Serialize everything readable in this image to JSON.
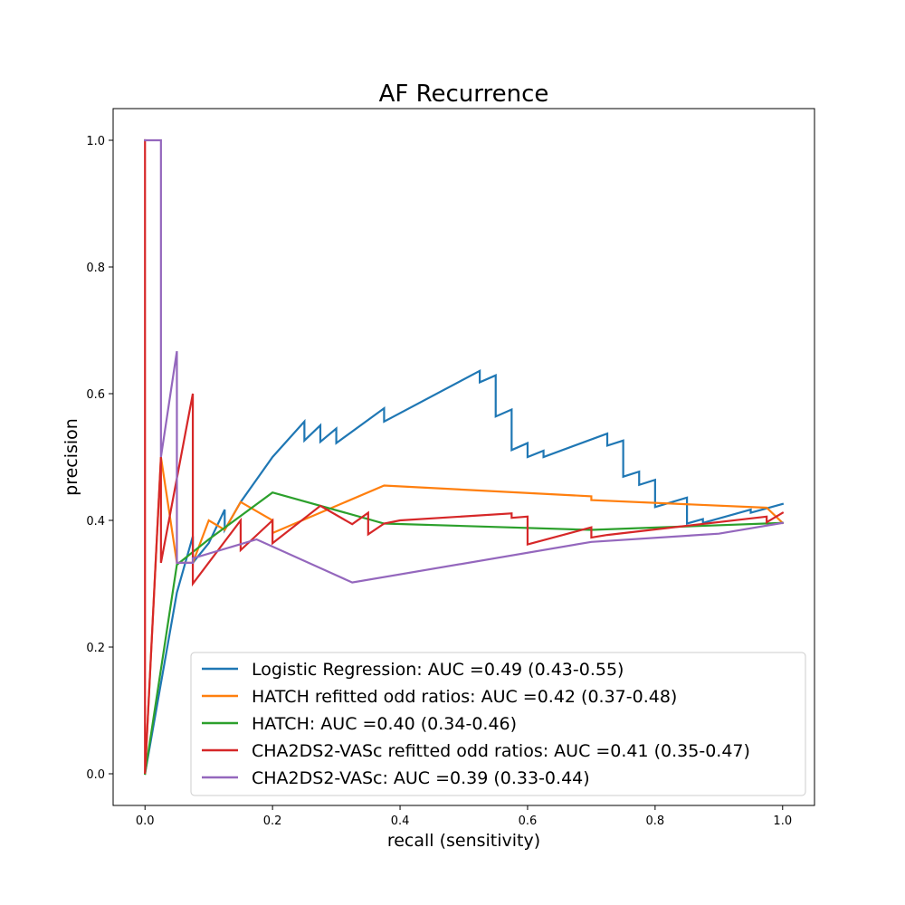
{
  "chart_data": {
    "type": "line",
    "title": "AF Recurrence",
    "xlabel": "recall (sensitivity)",
    "ylabel": "precision",
    "xlim": [
      -0.05,
      1.05
    ],
    "ylim": [
      -0.05,
      1.05
    ],
    "x_ticks": [
      0.0,
      0.2,
      0.4,
      0.6,
      0.8,
      1.0
    ],
    "x_tick_labels": [
      "0.0",
      "0.2",
      "0.4",
      "0.6",
      "0.8",
      "1.0"
    ],
    "y_ticks": [
      0.0,
      0.2,
      0.4,
      0.6,
      0.8,
      1.0
    ],
    "y_tick_labels": [
      "0.0",
      "0.2",
      "0.4",
      "0.6",
      "0.8",
      "1.0"
    ],
    "grid": false,
    "legend_position": "lower-right",
    "series": [
      {
        "name": "Logistic Regression: AUC =0.49 (0.43-0.55)",
        "color": "#1f77b4",
        "points": [
          [
            0,
            0
          ],
          [
            0.05,
            0.286
          ],
          [
            0.075,
            0.375
          ],
          [
            0.075,
            0.333
          ],
          [
            0.1,
            0.364
          ],
          [
            0.125,
            0.417
          ],
          [
            0.125,
            0.385
          ],
          [
            0.15,
            0.429
          ],
          [
            0.2,
            0.5
          ],
          [
            0.25,
            0.556
          ],
          [
            0.25,
            0.526
          ],
          [
            0.275,
            0.55
          ],
          [
            0.275,
            0.524
          ],
          [
            0.3,
            0.545
          ],
          [
            0.3,
            0.522
          ],
          [
            0.375,
            0.577
          ],
          [
            0.375,
            0.556
          ],
          [
            0.525,
            0.636
          ],
          [
            0.525,
            0.618
          ],
          [
            0.55,
            0.629
          ],
          [
            0.55,
            0.564
          ],
          [
            0.575,
            0.575
          ],
          [
            0.575,
            0.511
          ],
          [
            0.6,
            0.522
          ],
          [
            0.6,
            0.5
          ],
          [
            0.625,
            0.51
          ],
          [
            0.625,
            0.5
          ],
          [
            0.725,
            0.537
          ],
          [
            0.725,
            0.518
          ],
          [
            0.75,
            0.526
          ],
          [
            0.75,
            0.469
          ],
          [
            0.775,
            0.477
          ],
          [
            0.775,
            0.456
          ],
          [
            0.8,
            0.464
          ],
          [
            0.8,
            0.421
          ],
          [
            0.85,
            0.436
          ],
          [
            0.85,
            0.395
          ],
          [
            0.875,
            0.402
          ],
          [
            0.875,
            0.396
          ],
          [
            0.95,
            0.417
          ],
          [
            0.95,
            0.412
          ],
          [
            1.0,
            0.426
          ]
        ]
      },
      {
        "name": "HATCH refitted odd ratios: AUC =0.42 (0.37-0.48)",
        "color": "#ff7f0e",
        "points": [
          [
            0,
            0
          ],
          [
            0.025,
            0.5
          ],
          [
            0.05,
            0.333
          ],
          [
            0.075,
            0.333
          ],
          [
            0.1,
            0.4
          ],
          [
            0.125,
            0.385
          ],
          [
            0.15,
            0.429
          ],
          [
            0.2,
            0.4
          ],
          [
            0.2,
            0.38
          ],
          [
            0.375,
            0.455
          ],
          [
            0.7,
            0.438
          ],
          [
            0.7,
            0.432
          ],
          [
            0.975,
            0.42
          ],
          [
            1.0,
            0.396
          ]
        ]
      },
      {
        "name": "HATCH: AUC =0.40 (0.34-0.46)",
        "color": "#2ca02c",
        "points": [
          [
            0,
            0
          ],
          [
            0.05,
            0.33
          ],
          [
            0.1,
            0.37
          ],
          [
            0.2,
            0.444
          ],
          [
            0.375,
            0.395
          ],
          [
            0.7,
            0.385
          ],
          [
            1.0,
            0.396
          ]
        ]
      },
      {
        "name": "CHA2DS2-VASc refitted odd ratios: AUC =0.41 (0.35-0.47)",
        "color": "#d62728",
        "points": [
          [
            0,
            1.0
          ],
          [
            0,
            0
          ],
          [
            0.025,
            0.5
          ],
          [
            0.025,
            0.333
          ],
          [
            0.075,
            0.6
          ],
          [
            0.075,
            0.3
          ],
          [
            0.15,
            0.4
          ],
          [
            0.15,
            0.353
          ],
          [
            0.2,
            0.4
          ],
          [
            0.2,
            0.364
          ],
          [
            0.275,
            0.423
          ],
          [
            0.325,
            0.394
          ],
          [
            0.35,
            0.412
          ],
          [
            0.35,
            0.378
          ],
          [
            0.375,
            0.395
          ],
          [
            0.4,
            0.4
          ],
          [
            0.575,
            0.411
          ],
          [
            0.575,
            0.404
          ],
          [
            0.6,
            0.406
          ],
          [
            0.6,
            0.362
          ],
          [
            0.7,
            0.389
          ],
          [
            0.7,
            0.373
          ],
          [
            0.725,
            0.377
          ],
          [
            0.975,
            0.406
          ],
          [
            0.975,
            0.397
          ],
          [
            1.0,
            0.412
          ]
        ]
      },
      {
        "name": "CHA2DS2-VASc: AUC =0.39 (0.33-0.44)",
        "color": "#9467bd",
        "points": [
          [
            0,
            1.0
          ],
          [
            0.025,
            1.0
          ],
          [
            0.025,
            0.5
          ],
          [
            0.05,
            0.667
          ],
          [
            0.05,
            0.333
          ],
          [
            0.075,
            0.333
          ],
          [
            0.075,
            0.34
          ],
          [
            0.175,
            0.37
          ],
          [
            0.325,
            0.302
          ],
          [
            0.7,
            0.366
          ],
          [
            0.9,
            0.379
          ],
          [
            1.0,
            0.396
          ]
        ]
      }
    ]
  }
}
